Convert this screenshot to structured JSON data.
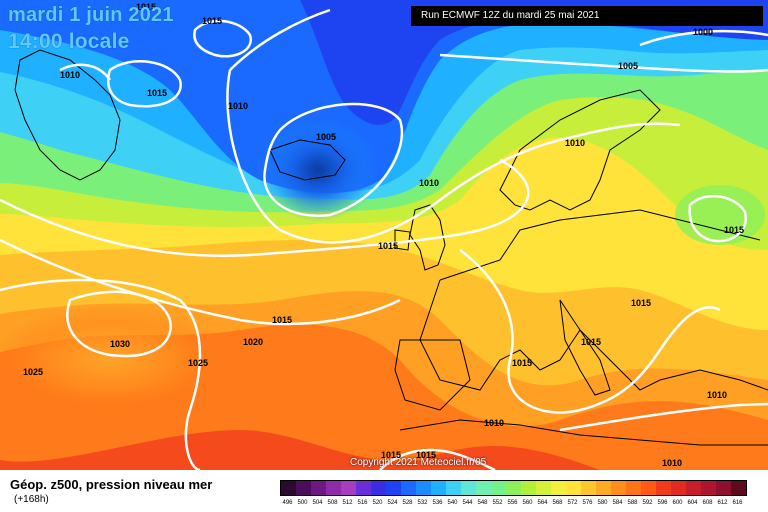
{
  "header": {
    "date_line": "mardi 1 juin 2021",
    "time_line": "14:00 locale",
    "run_info": "Run ECMWF 12Z du mardi 25 mai 2021"
  },
  "footer": {
    "title": "Géop. z500, pression niveau mer",
    "lead_time": "(+168h)",
    "copyright": "Copyright 2021 Meteociel.fr/05"
  },
  "isobar_labels": [
    "1015",
    "1015",
    "1010",
    "1015",
    "1010",
    "1005",
    "1000",
    "1005",
    "1010",
    "1010",
    "1015",
    "1015",
    "1015",
    "1030",
    "1025",
    "1025",
    "1020",
    "1015",
    "1015",
    "1015",
    "1015",
    "1010",
    "1010",
    "1015",
    "1010"
  ],
  "legend": {
    "ticks": [
      "496",
      "500",
      "504",
      "508",
      "512",
      "516",
      "520",
      "524",
      "528",
      "532",
      "536",
      "540",
      "544",
      "548",
      "552",
      "556",
      "560",
      "564",
      "568",
      "572",
      "576",
      "580",
      "584",
      "588",
      "592",
      "596",
      "600",
      "604",
      "608",
      "612",
      "616"
    ],
    "colors": [
      "#2a0a2e",
      "#4a0f5a",
      "#6c1a82",
      "#8f2aa8",
      "#a63cc0",
      "#6a2fd8",
      "#3a2ee0",
      "#1d44f0",
      "#1a6aff",
      "#1a8dff",
      "#1fb0ff",
      "#3fd0f5",
      "#5ee6d9",
      "#6ef0b0",
      "#74f28a",
      "#8cf05a",
      "#b2f03a",
      "#d6f03a",
      "#f2f03c",
      "#ffe23a",
      "#ffc62e",
      "#ffaa24",
      "#ff8e1e",
      "#ff7418",
      "#ff5a16",
      "#f03c1c",
      "#e02a24",
      "#c81e2a",
      "#ac1630",
      "#8e1030",
      "#600a1e"
    ]
  },
  "colors": {
    "title_blue": "#5ec8ff",
    "deep_blue": "#0a3da0",
    "land_outline": "#000000",
    "isobar": "#ffffff"
  }
}
